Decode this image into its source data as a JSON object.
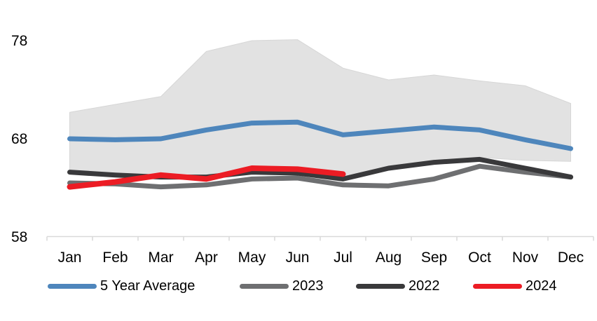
{
  "chart_data": {
    "type": "line",
    "title": "",
    "categories": [
      "Jan",
      "Feb",
      "Mar",
      "Apr",
      "May",
      "Jun",
      "Jul",
      "Aug",
      "Sep",
      "Oct",
      "Nov",
      "Dec"
    ],
    "xlabel": "",
    "ylabel": "",
    "ylim": [
      58,
      78
    ],
    "y_ticks": [
      78,
      68,
      58
    ],
    "grid": false,
    "legend_position": "bottom",
    "axis_color": "#D9D9D9",
    "band": {
      "color": "#E2E2E2",
      "edge_color": "#D6D6D6",
      "upper": [
        70.7,
        71.5,
        72.3,
        76.9,
        78.0,
        78.1,
        75.2,
        74.0,
        74.5,
        73.9,
        73.4,
        71.6
      ],
      "lower": [
        64.8,
        64.5,
        64.3,
        64.1,
        64.5,
        64.4,
        63.9,
        65.2,
        65.8,
        66.1,
        65.8,
        65.7
      ]
    },
    "series": [
      {
        "name": "5 Year Average",
        "color": "#4E86BC",
        "stroke_width": 7,
        "values": [
          68.0,
          67.9,
          68.0,
          68.9,
          69.6,
          69.7,
          68.4,
          68.8,
          69.2,
          68.9,
          67.9,
          67.0
        ]
      },
      {
        "name": "2023",
        "color": "#6E6F71",
        "stroke_width": 7,
        "values": [
          63.5,
          63.4,
          63.1,
          63.3,
          63.9,
          64.0,
          63.3,
          63.2,
          63.9,
          65.2,
          64.6,
          64.1
        ]
      },
      {
        "name": "2022",
        "color": "#39393B",
        "stroke_width": 7,
        "values": [
          64.6,
          64.3,
          64.1,
          64.1,
          64.6,
          64.5,
          63.9,
          65.0,
          65.6,
          65.9,
          65.0,
          64.1
        ]
      },
      {
        "name": "2024",
        "color": "#EC1C24",
        "stroke_width": 8,
        "values": [
          63.1,
          63.6,
          64.3,
          63.9,
          65.0,
          64.9,
          64.4,
          null,
          null,
          null,
          null,
          null
        ]
      }
    ]
  }
}
